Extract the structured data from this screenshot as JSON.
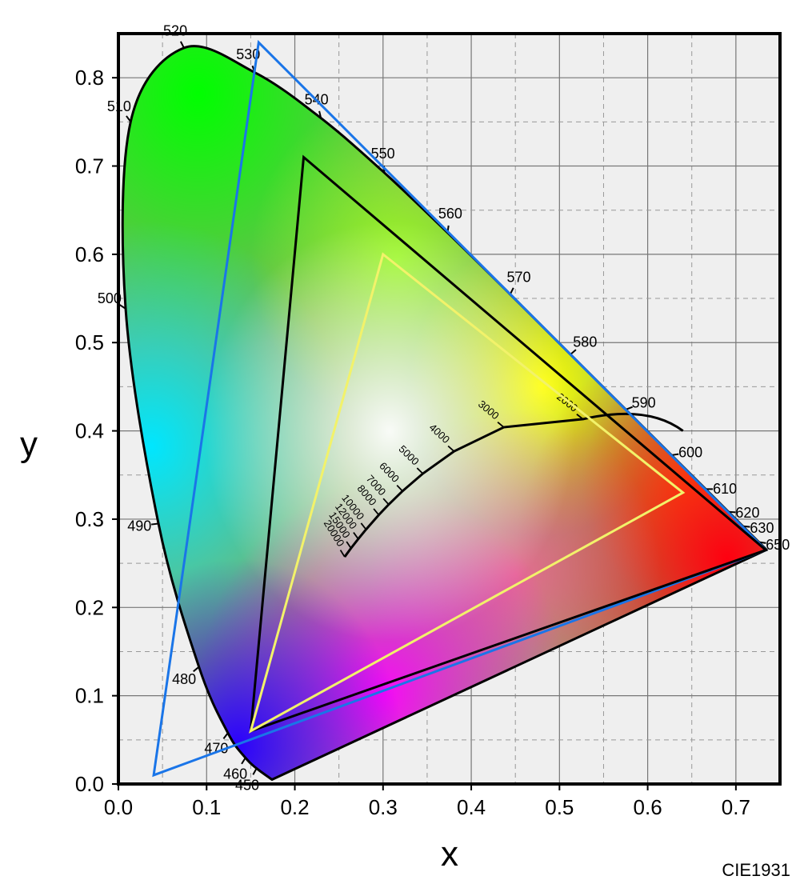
{
  "chart_data": {
    "type": "scatter",
    "title": "",
    "caption": "CIE1931",
    "xlabel": "x",
    "ylabel": "y",
    "xlim": [
      0.0,
      0.75
    ],
    "ylim": [
      0.0,
      0.85
    ],
    "x_ticks": [
      "0.0",
      "0.1",
      "0.2",
      "0.3",
      "0.4",
      "0.5",
      "0.6",
      "0.7"
    ],
    "y_ticks": [
      "0.0",
      "0.1",
      "0.2",
      "0.3",
      "0.4",
      "0.5",
      "0.6",
      "0.7",
      "0.8"
    ],
    "grid": true,
    "spectral_locus": [
      {
        "nm": "450",
        "x": 0.1566,
        "y": 0.0177
      },
      {
        "nm": "460",
        "x": 0.144,
        "y": 0.0297
      },
      {
        "nm": "470",
        "x": 0.1241,
        "y": 0.0578
      },
      {
        "nm": "480",
        "x": 0.0913,
        "y": 0.1327
      },
      {
        "nm": "490",
        "x": 0.0454,
        "y": 0.295
      },
      {
        "nm": "500",
        "x": 0.0082,
        "y": 0.5384
      },
      {
        "nm": "510",
        "x": 0.0139,
        "y": 0.7502
      },
      {
        "nm": "520",
        "x": 0.0743,
        "y": 0.8338
      },
      {
        "nm": "530",
        "x": 0.1547,
        "y": 0.8059
      },
      {
        "nm": "540",
        "x": 0.2296,
        "y": 0.7543
      },
      {
        "nm": "550",
        "x": 0.3016,
        "y": 0.6923
      },
      {
        "nm": "560",
        "x": 0.3731,
        "y": 0.6245
      },
      {
        "nm": "570",
        "x": 0.4441,
        "y": 0.5547
      },
      {
        "nm": "580",
        "x": 0.5125,
        "y": 0.4866
      },
      {
        "nm": "590",
        "x": 0.5752,
        "y": 0.4242
      },
      {
        "nm": "600",
        "x": 0.627,
        "y": 0.3725
      },
      {
        "nm": "610",
        "x": 0.6658,
        "y": 0.334
      },
      {
        "nm": "620",
        "x": 0.6915,
        "y": 0.3083
      },
      {
        "nm": "630",
        "x": 0.7079,
        "y": 0.292
      },
      {
        "nm": "650",
        "x": 0.726,
        "y": 0.274
      }
    ],
    "gamuts": [
      {
        "color": "#1a75e8",
        "vertices": [
          [
            0.159,
            0.84
          ],
          [
            0.734,
            0.265
          ],
          [
            0.04,
            0.01
          ]
        ]
      },
      {
        "color": "#000000",
        "vertices": [
          [
            0.21,
            0.71
          ],
          [
            0.734,
            0.265
          ],
          [
            0.15,
            0.06
          ]
        ]
      },
      {
        "color": "#f2f26a",
        "vertices": [
          [
            0.3,
            0.6
          ],
          [
            0.64,
            0.33
          ],
          [
            0.15,
            0.06
          ]
        ]
      }
    ],
    "planckian_locus": [
      {
        "label": "2000",
        "x": 0.5267,
        "y": 0.4133
      },
      {
        "label": "3000",
        "x": 0.4369,
        "y": 0.4041
      },
      {
        "label": "4000",
        "x": 0.3805,
        "y": 0.3768
      },
      {
        "label": "5000",
        "x": 0.3451,
        "y": 0.3516
      },
      {
        "label": "6000",
        "x": 0.3221,
        "y": 0.3318
      },
      {
        "label": "7000",
        "x": 0.3064,
        "y": 0.3166
      },
      {
        "label": "8000",
        "x": 0.2952,
        "y": 0.3048
      },
      {
        "label": "10000",
        "x": 0.2807,
        "y": 0.2883
      },
      {
        "label": "12000",
        "x": 0.2719,
        "y": 0.2776
      },
      {
        "label": "15000",
        "x": 0.2637,
        "y": 0.2671
      },
      {
        "label": "20000",
        "x": 0.2565,
        "y": 0.2573
      }
    ]
  }
}
